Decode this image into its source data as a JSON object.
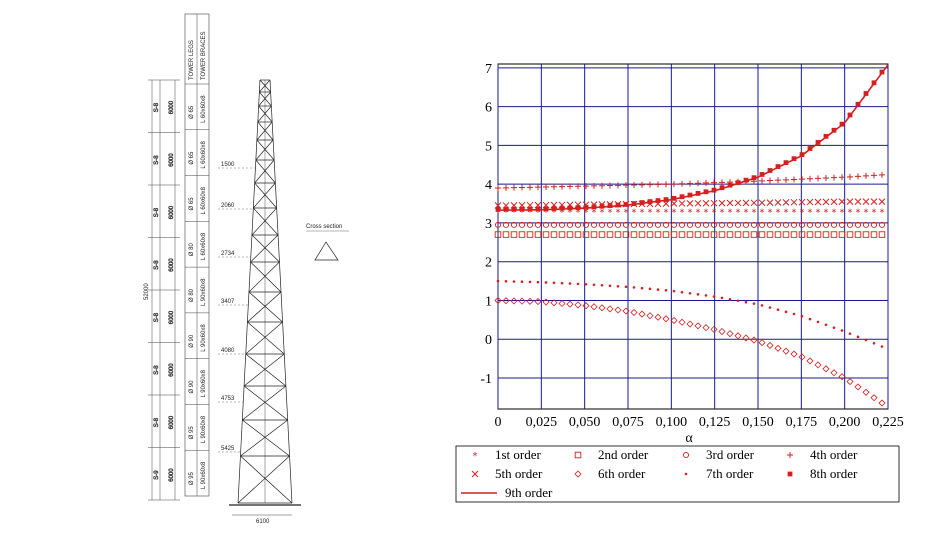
{
  "tower": {
    "segment_label": "S-8",
    "segment_labels": [
      "S-8",
      "S-8",
      "S-8",
      "S-8",
      "S-8",
      "S-8",
      "S-8",
      "S-9"
    ],
    "segment_length": "6000",
    "total_height": "52000",
    "header_legs": "TOWER LEGS",
    "header_braces": "TOWER BRACES",
    "legs": [
      "Ø 65",
      "Ø 65",
      "Ø 65",
      "Ø 80",
      "Ø 80",
      "Ø 90",
      "Ø 90",
      "Ø 95",
      "Ø 95"
    ],
    "braces": [
      "L 60x60x8",
      "L 60x60x8",
      "L 60x60x8",
      "L 60x60x8",
      "L 90x60x8",
      "L 90x60x8",
      "L 90x60x8",
      "L 90x60x8",
      "L 90x60x8"
    ],
    "widths": [
      "1500",
      "2060",
      "2734",
      "3407",
      "4080",
      "4753",
      "5425"
    ],
    "base_width": "6100",
    "cross_section_label": "Cross section"
  },
  "chart_data": {
    "type": "scatter",
    "xlabel": "α",
    "ylabel": "",
    "xlim": [
      0,
      0.225
    ],
    "ylim": [
      -1.8,
      7.1
    ],
    "x_ticks": [
      "0",
      "0,025",
      "0,050",
      "0,075",
      "0,100",
      "0,125",
      "0,150",
      "0,175",
      "0,200",
      "0,225"
    ],
    "y_ticks": [
      "-1",
      "0",
      "1",
      "2",
      "3",
      "4",
      "5",
      "6",
      "7"
    ],
    "grid": true,
    "legend_placement": "bottom",
    "colors": {
      "series": "#d62020",
      "grid": "#1a1a8c"
    },
    "series": [
      {
        "name": "1st order",
        "marker": "star",
        "points": [
          [
            0,
            3.3
          ],
          [
            0.225,
            3.3
          ]
        ]
      },
      {
        "name": "2nd order",
        "marker": "square",
        "points": [
          [
            0,
            2.7
          ],
          [
            0.225,
            2.7
          ]
        ]
      },
      {
        "name": "3rd order",
        "marker": "circle",
        "points": [
          [
            0,
            2.95
          ],
          [
            0.225,
            2.95
          ]
        ]
      },
      {
        "name": "4th order",
        "marker": "plus",
        "points": [
          [
            0,
            3.9
          ],
          [
            0.05,
            3.95
          ],
          [
            0.1,
            4.0
          ],
          [
            0.15,
            4.08
          ],
          [
            0.2,
            4.18
          ],
          [
            0.225,
            4.25
          ]
        ]
      },
      {
        "name": "5th order",
        "marker": "x",
        "points": [
          [
            0,
            3.45
          ],
          [
            0.05,
            3.47
          ],
          [
            0.1,
            3.5
          ],
          [
            0.15,
            3.52
          ],
          [
            0.2,
            3.55
          ],
          [
            0.225,
            3.55
          ]
        ]
      },
      {
        "name": "6th order",
        "marker": "diamond",
        "points": [
          [
            0,
            1.0
          ],
          [
            0.025,
            0.97
          ],
          [
            0.05,
            0.87
          ],
          [
            0.075,
            0.72
          ],
          [
            0.1,
            0.5
          ],
          [
            0.125,
            0.25
          ],
          [
            0.15,
            -0.05
          ],
          [
            0.175,
            -0.45
          ],
          [
            0.2,
            -1.0
          ],
          [
            0.225,
            -1.75
          ]
        ]
      },
      {
        "name": "7th order",
        "marker": "dot",
        "points": [
          [
            0,
            1.5
          ],
          [
            0.025,
            1.47
          ],
          [
            0.05,
            1.42
          ],
          [
            0.075,
            1.35
          ],
          [
            0.1,
            1.25
          ],
          [
            0.125,
            1.1
          ],
          [
            0.15,
            0.9
          ],
          [
            0.175,
            0.6
          ],
          [
            0.2,
            0.2
          ],
          [
            0.225,
            -0.25
          ]
        ]
      },
      {
        "name": "8th order",
        "marker": "filled-square",
        "points": [
          [
            0,
            3.35
          ],
          [
            0.025,
            3.36
          ],
          [
            0.05,
            3.4
          ],
          [
            0.075,
            3.48
          ],
          [
            0.1,
            3.62
          ],
          [
            0.125,
            3.85
          ],
          [
            0.15,
            4.2
          ],
          [
            0.175,
            4.75
          ],
          [
            0.2,
            5.6
          ],
          [
            0.225,
            7.1
          ]
        ]
      },
      {
        "name": "9th order",
        "marker": "line",
        "points": [
          [
            0,
            3.33
          ],
          [
            0.025,
            3.34
          ],
          [
            0.05,
            3.38
          ],
          [
            0.075,
            3.46
          ],
          [
            0.1,
            3.6
          ],
          [
            0.125,
            3.83
          ],
          [
            0.15,
            4.18
          ],
          [
            0.175,
            4.73
          ],
          [
            0.2,
            5.58
          ],
          [
            0.225,
            7.08
          ]
        ]
      }
    ]
  }
}
